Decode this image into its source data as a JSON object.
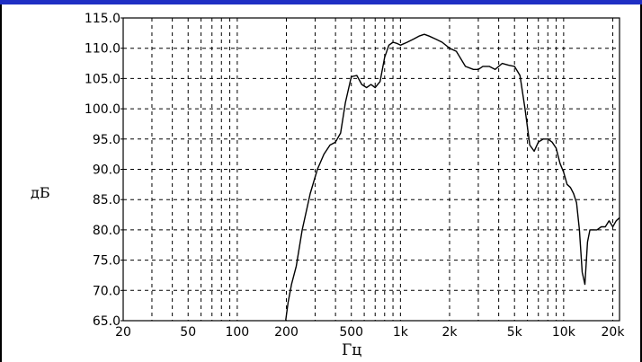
{
  "chart_data": {
    "type": "line",
    "title": "",
    "xlabel": "Гц",
    "ylabel": "дБ",
    "x_scale": "log",
    "xlim": [
      20,
      22000
    ],
    "ylim": [
      65,
      115
    ],
    "grid": true,
    "x_ticks": [
      {
        "value": 20,
        "label": "20"
      },
      {
        "value": 50,
        "label": "50"
      },
      {
        "value": 100,
        "label": "100"
      },
      {
        "value": 200,
        "label": "200"
      },
      {
        "value": 500,
        "label": "500"
      },
      {
        "value": 1000,
        "label": "1k"
      },
      {
        "value": 2000,
        "label": "2k"
      },
      {
        "value": 5000,
        "label": "5k"
      },
      {
        "value": 10000,
        "label": "10k"
      },
      {
        "value": 20000,
        "label": "20k"
      }
    ],
    "y_ticks": [
      {
        "value": 65,
        "label": "65.0"
      },
      {
        "value": 70,
        "label": "70.0"
      },
      {
        "value": 75,
        "label": "75.0"
      },
      {
        "value": 80,
        "label": "80.0"
      },
      {
        "value": 85,
        "label": "85.0"
      },
      {
        "value": 90,
        "label": "90.0"
      },
      {
        "value": 95,
        "label": "95.0"
      },
      {
        "value": 100,
        "label": "100.0"
      },
      {
        "value": 105,
        "label": "105.0"
      },
      {
        "value": 110,
        "label": "110.0"
      },
      {
        "value": 115,
        "label": "115.0"
      }
    ],
    "series": [
      {
        "x": [
          198,
          205,
          215,
          230,
          250,
          280,
          310,
          340,
          370,
          400,
          430,
          460,
          500,
          540,
          580,
          620,
          660,
          700,
          750,
          800,
          850,
          900,
          950,
          1000,
          1100,
          1200,
          1300,
          1400,
          1500,
          1650,
          1800,
          2000,
          2200,
          2500,
          2800,
          3000,
          3200,
          3500,
          3800,
          4200,
          4600,
          5000,
          5400,
          5800,
          6200,
          6600,
          7000,
          7500,
          8000,
          8500,
          9000,
          9500,
          10000,
          10500,
          11000,
          11500,
          12000,
          12500,
          13000,
          13500,
          14000,
          14500,
          15000,
          16000,
          17000,
          18000,
          19000,
          20000,
          21000,
          22000
        ],
        "y": [
          65,
          68,
          71,
          74,
          80,
          86,
          90,
          92.5,
          94,
          94.5,
          96,
          101,
          105.3,
          105.5,
          104,
          103.5,
          104,
          103.5,
          104.5,
          108.5,
          110.5,
          111,
          110.8,
          110.5,
          111,
          111.5,
          112,
          112.3,
          112,
          111.5,
          111,
          110,
          109.5,
          107,
          106.5,
          106.5,
          107,
          107,
          106.5,
          107.5,
          107.2,
          107,
          105.5,
          100,
          94,
          93,
          94.5,
          95,
          95,
          94.5,
          93.5,
          91,
          89.5,
          87.5,
          87,
          86,
          84.5,
          80,
          73,
          71,
          78,
          80,
          80,
          80,
          80.5,
          80.5,
          81.5,
          80.5,
          81.5,
          82
        ]
      }
    ]
  }
}
